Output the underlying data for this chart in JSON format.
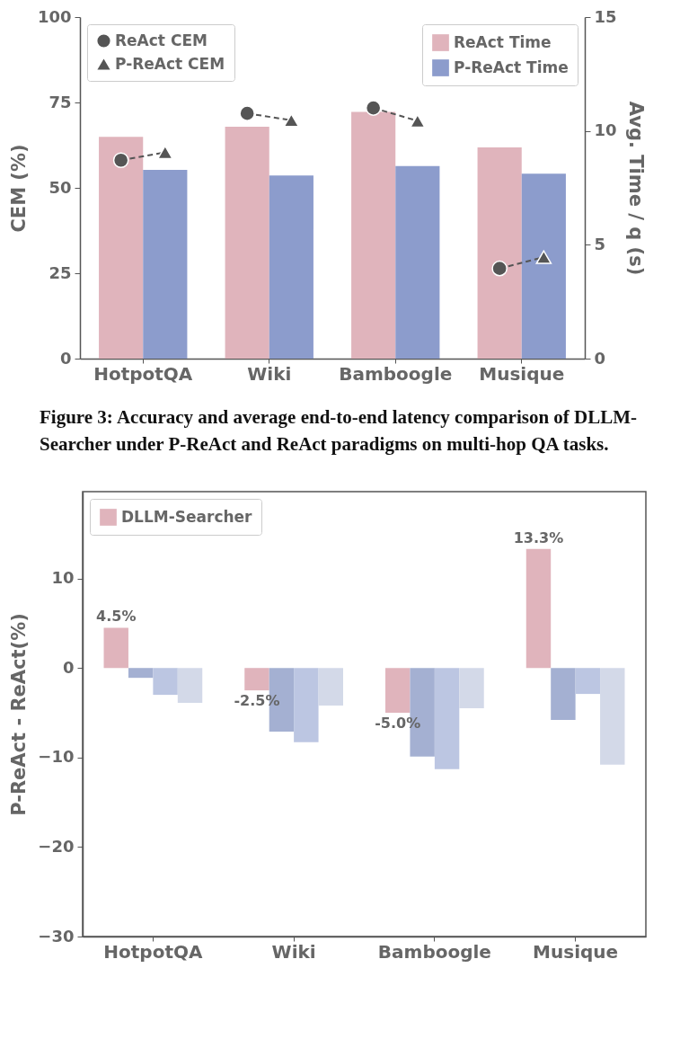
{
  "chart_data": [
    {
      "type": "bar",
      "ylabel": "CEM (%)",
      "y2label": "Avg. Time / q (s)",
      "categories": [
        "HotpotQA",
        "Wiki",
        "Bamboogle",
        "Musique"
      ],
      "series": [
        {
          "name": "ReAct Time",
          "color": "#e0b4bc",
          "axis": "y2",
          "values": [
            9.74,
            10.18,
            10.84,
            9.28
          ]
        },
        {
          "name": "P-ReAct Time",
          "color": "#8c9ccc",
          "axis": "y2",
          "values": [
            8.29,
            8.04,
            8.46,
            8.12
          ]
        },
        {
          "name": "ReAct CEM",
          "type": "scatter",
          "marker": "circle",
          "color": "#555555",
          "values": [
            58.1,
            71.8,
            73.4,
            26.4
          ]
        },
        {
          "name": "P-ReAct CEM",
          "type": "scatter",
          "marker": "triangle",
          "color": "#555555",
          "values": [
            60.4,
            69.8,
            69.6,
            29.7
          ]
        }
      ],
      "ylim": [
        0,
        100
      ],
      "yticks": [
        0,
        25,
        50,
        75,
        100
      ],
      "y2lim": [
        0,
        15
      ],
      "y2ticks": [
        0,
        5,
        10,
        15
      ],
      "line_style": "dashed",
      "legend": "top right",
      "annotations": [
        "Figure 3: Accuracy and average end-to-end latency comparison of DLLM-Searcher under P-ReAct and ReAct paradigms on multi-hop QA tasks."
      ]
    },
    {
      "type": "bar",
      "ylabel": "P-ReAct - ReAct(%)",
      "categories": [
        "HotpotQA",
        "Wiki",
        "Bamboogle",
        "Musique"
      ],
      "series": [
        {
          "name": "DLLM-Searcher",
          "color": "#e0b4bc",
          "values": [
            4.5,
            -2.5,
            -5.0,
            13.3
          ],
          "value_labels": [
            "4.5%",
            "-2.5%",
            "-5.0%",
            "13.3%"
          ]
        },
        {
          "color": "#a4b0d2",
          "values": [
            -1.1,
            -7.1,
            -9.9,
            -5.8
          ]
        },
        {
          "color": "#bcc6e2",
          "values": [
            -3.0,
            -8.3,
            -11.3,
            -2.9
          ]
        },
        {
          "color": "#d3d9e8",
          "values": [
            -3.9,
            -4.2,
            -4.5,
            -10.8
          ]
        }
      ],
      "ylim": [
        -30,
        19.7
      ],
      "yticks": [
        -30,
        -20,
        -10,
        0,
        10
      ],
      "legend": "top left"
    }
  ]
}
